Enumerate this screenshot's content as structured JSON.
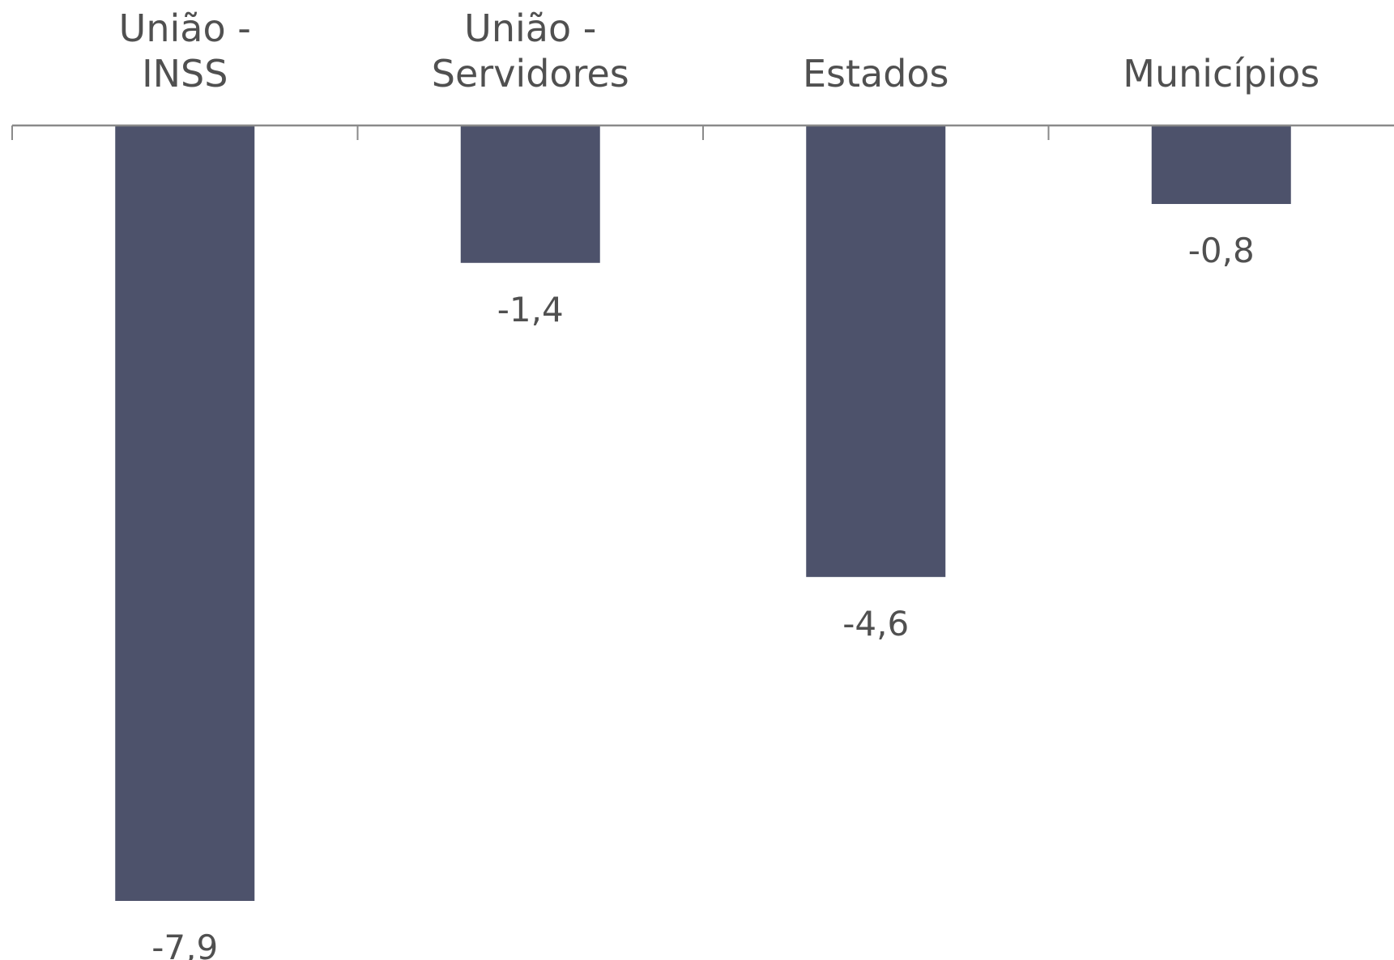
{
  "chart_data": {
    "type": "bar",
    "categories": [
      [
        "União -",
        "INSS"
      ],
      [
        "União -",
        "Servidores"
      ],
      [
        "Estados"
      ],
      [
        "Municípios"
      ]
    ],
    "category_names": [
      "União - INSS",
      "União - Servidores",
      "Estados",
      "Municípios"
    ],
    "values": [
      -7.9,
      -1.4,
      -4.6,
      -0.8
    ],
    "value_labels": [
      "-7,9",
      "-1,4",
      "-4,6",
      "-0,8"
    ],
    "title": "",
    "xlabel": "",
    "ylabel": "",
    "ylim": [
      -7.9,
      0
    ],
    "x_axis_position": "top",
    "grid": false,
    "legend": "none",
    "bar_color": "#4d526b"
  }
}
